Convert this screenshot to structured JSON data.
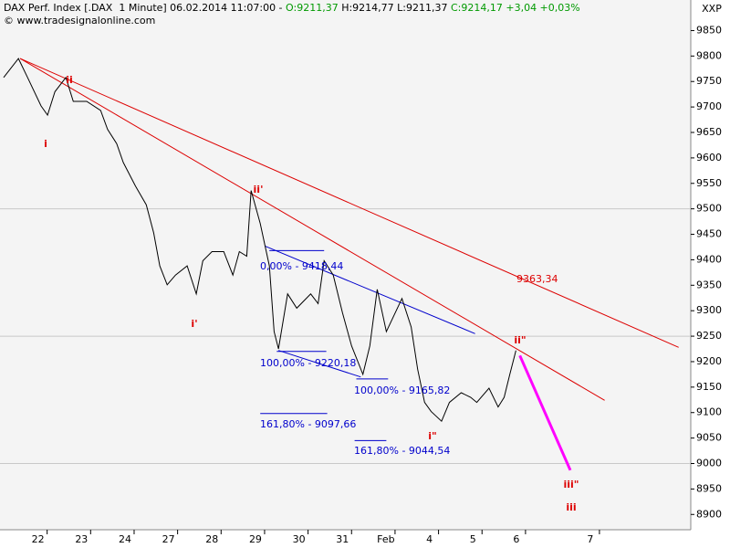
{
  "chart_data": {
    "type": "line",
    "header": [
      "DAX Perf. Index [.DAX  1 Minute] 06.02.2014 11:07:00 - ",
      "O:9211,37",
      " H:9214,77 L:9211,37 ",
      "C:9214,17 +3,04 +0,03%"
    ],
    "copyright": "© www.tradesignalonline.com",
    "corner_label": "XXP",
    "xlim": [
      0,
      15.8
    ],
    "xticks": [
      {
        "value": 1,
        "label": "22"
      },
      {
        "value": 2,
        "label": "23"
      },
      {
        "value": 3,
        "label": "24"
      },
      {
        "value": 4,
        "label": "27"
      },
      {
        "value": 5,
        "label": "28"
      },
      {
        "value": 6,
        "label": "29"
      },
      {
        "value": 7,
        "label": "30"
      },
      {
        "value": 8,
        "label": "31"
      },
      {
        "value": 9,
        "label": "Feb"
      },
      {
        "value": 10,
        "label": "4"
      },
      {
        "value": 11,
        "label": "5"
      },
      {
        "value": 12,
        "label": "6"
      },
      {
        "value": 13.7,
        "label": "7"
      }
    ],
    "ylim": [
      8870,
      9910
    ],
    "yticks": [
      8900,
      8950,
      9000,
      9050,
      9100,
      9150,
      9200,
      9250,
      9300,
      9350,
      9400,
      9450,
      9500,
      9550,
      9600,
      9650,
      9700,
      9750,
      9800,
      9850
    ],
    "grid_lines": [
      9000,
      9250,
      9500
    ],
    "series": [
      {
        "color": "#000000",
        "x": [
          0,
          0.34,
          0.55,
          0.86,
          1.01,
          1.18,
          1.43,
          1.6,
          1.91,
          2.23,
          2.39,
          2.6,
          2.75,
          3.03,
          3.28,
          3.45,
          3.59,
          3.76,
          3.95,
          4.22,
          4.43,
          4.58,
          4.79,
          5.06,
          5.27,
          5.42,
          5.59,
          5.69,
          5.9,
          6.11,
          6.22,
          6.32,
          6.53,
          6.74,
          7.06,
          7.23,
          7.37,
          7.58,
          7.79,
          8.0,
          8.26,
          8.42,
          8.59,
          8.8,
          9.16,
          9.37,
          9.52,
          9.68,
          9.83,
          10.07,
          10.25,
          10.52,
          10.74,
          10.88,
          11.16,
          11.37,
          11.51,
          11.64,
          11.78
        ],
        "values": [
          9758,
          9795,
          9758,
          9702,
          9684,
          9730,
          9758,
          9711,
          9711,
          9693,
          9656,
          9628,
          9591,
          9545,
          9508,
          9453,
          9388,
          9351,
          9370,
          9388,
          9333,
          9398,
          9416,
          9416,
          9370,
          9416,
          9407,
          9536,
          9471,
          9388,
          9259,
          9225,
          9333,
          9305,
          9333,
          9314,
          9398,
          9370,
          9296,
          9231,
          9175,
          9231,
          9342,
          9259,
          9324,
          9268,
          9185,
          9120,
          9102,
          9083,
          9120,
          9139,
          9130,
          9120,
          9148,
          9111,
          9130,
          9175,
          9222
        ]
      }
    ],
    "lines": [
      {
        "color": "#dd0000",
        "width": 1,
        "x": [
          0.38,
          15.52
        ],
        "values": [
          9795,
          9228
        ]
      },
      {
        "color": "#dd0000",
        "width": 1,
        "x": [
          0.38,
          13.82
        ],
        "values": [
          9795,
          9124
        ]
      },
      {
        "color": "#0000cc",
        "width": 1,
        "x": [
          6.01,
          10.84
        ],
        "values": [
          9427,
          9255
        ]
      },
      {
        "color": "#0000cc",
        "width": 1,
        "x": [
          6.32,
          8.21
        ],
        "values": [
          9222,
          9170
        ]
      },
      {
        "color": "#ff00ff",
        "width": 3,
        "x": [
          11.87,
          13.03
        ],
        "values": [
          9212,
          8987
        ]
      },
      {
        "color": "#0000cc",
        "width": 1,
        "x": [
          6.11,
          7.37
        ],
        "values": [
          9418,
          9418
        ]
      },
      {
        "color": "#0000cc",
        "width": 1,
        "x": [
          6.28,
          7.42
        ],
        "values": [
          9220,
          9220
        ]
      },
      {
        "color": "#0000cc",
        "width": 1,
        "x": [
          8.11,
          8.84
        ],
        "values": [
          9166,
          9166
        ]
      },
      {
        "color": "#0000cc",
        "width": 1,
        "x": [
          5.9,
          7.44
        ],
        "values": [
          9098,
          9098
        ]
      },
      {
        "color": "#0000cc",
        "width": 1,
        "x": [
          8.07,
          8.8
        ],
        "values": [
          9045,
          9045
        ]
      }
    ],
    "annotations": [
      {
        "text": "0,00% - 9418,44",
        "color": "#0000cc"
      },
      {
        "text": "100,00% - 9220,18",
        "color": "#0000cc"
      },
      {
        "text": "100,00% - 9165,82",
        "color": "#0000cc"
      },
      {
        "text": "161,80% - 9097,66",
        "color": "#0000cc"
      },
      {
        "text": "161,80% - 9044,54",
        "color": "#0000cc"
      },
      {
        "text": "9363,34",
        "color": "#dd0000"
      }
    ],
    "wave_labels": [
      {
        "text": "ii",
        "color": "#dd0000"
      },
      {
        "text": "i",
        "color": "#dd0000"
      },
      {
        "text": "ii'",
        "color": "#dd0000"
      },
      {
        "text": "i'",
        "color": "#dd0000"
      },
      {
        "text": "ii\"",
        "color": "#dd0000"
      },
      {
        "text": "i\"",
        "color": "#dd0000"
      },
      {
        "text": "iii\"",
        "color": "#dd0000"
      },
      {
        "text": "iii",
        "color": "#dd0000"
      }
    ]
  }
}
